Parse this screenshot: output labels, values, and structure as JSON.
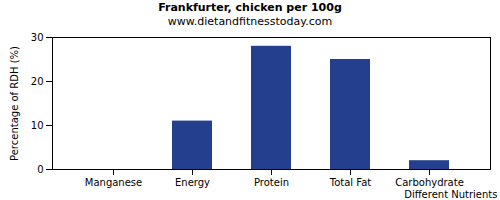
{
  "chart_data": {
    "type": "bar",
    "title": "Frankfurter, chicken per 100g",
    "subtitle": "www.dietandfitnesstoday.com",
    "x_label": "Different Nutrients",
    "y_label": "Percentage of RDH (%)",
    "categories": [
      "Manganese",
      "Energy",
      "Protein",
      "Total Fat",
      "Carbohydrate"
    ],
    "values": [
      0,
      11,
      28,
      25,
      2
    ],
    "color": "#243f8e",
    "ylim": [
      0,
      30
    ],
    "yticks": [
      0,
      10,
      20,
      30
    ],
    "grid": false
  }
}
